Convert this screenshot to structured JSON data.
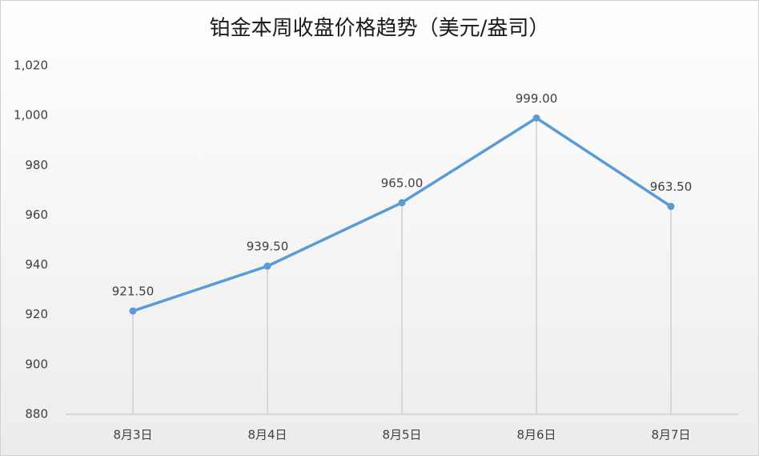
{
  "chart_data": {
    "type": "line",
    "title": "铂金本周收盘价格趋势（美元/盎司）",
    "categories": [
      "8月3日",
      "8月4日",
      "8月5日",
      "8月6日",
      "8月7日"
    ],
    "values": [
      921.5,
      939.5,
      965,
      999,
      963.5
    ],
    "value_labels": [
      "921.50",
      "939.50",
      "965.00",
      "999.00",
      "963.50"
    ],
    "color": "#5b9bd5",
    "ylim": [
      880,
      1020
    ],
    "yticks": [
      880,
      900,
      920,
      940,
      960,
      980,
      {
        "value": 1000,
        "label": "1,000"
      },
      {
        "value": 1020,
        "label": "1,020"
      }
    ],
    "drop_lines": true
  }
}
